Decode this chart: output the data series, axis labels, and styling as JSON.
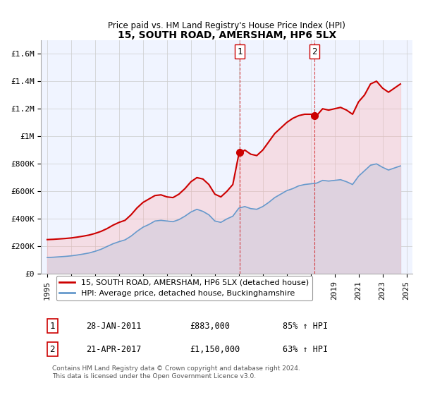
{
  "title": "15, SOUTH ROAD, AMERSHAM, HP6 5LX",
  "subtitle": "Price paid vs. HM Land Registry's House Price Index (HPI)",
  "xlabel": "",
  "ylabel": "",
  "ylim": [
    0,
    1700000
  ],
  "yticks": [
    0,
    200000,
    400000,
    600000,
    800000,
    1000000,
    1200000,
    1400000,
    1600000
  ],
  "ytick_labels": [
    "£0",
    "£200K",
    "£400K",
    "£600K",
    "£800K",
    "£1M",
    "£1.2M",
    "£1.4M",
    "£1.6M"
  ],
  "background_color": "#ffffff",
  "plot_bg_color": "#f0f4ff",
  "grid_color": "#cccccc",
  "red_line_color": "#cc0000",
  "blue_line_color": "#6699cc",
  "blue_fill_color": "#d0e4f7",
  "red_fill_color": "#f5c0c0",
  "marker1_date": 2011.08,
  "marker1_value": 883000,
  "marker1_label": "1",
  "marker2_date": 2017.31,
  "marker2_value": 1150000,
  "marker2_label": "2",
  "transaction1": {
    "date": "28-JAN-2011",
    "price": "£883,000",
    "hpi": "85% ↑ HPI"
  },
  "transaction2": {
    "date": "21-APR-2017",
    "price": "£1,150,000",
    "hpi": "63% ↑ HPI"
  },
  "legend_red": "15, SOUTH ROAD, AMERSHAM, HP6 5LX (detached house)",
  "legend_blue": "HPI: Average price, detached house, Buckinghamshire",
  "footnote": "Contains HM Land Registry data © Crown copyright and database right 2024.\nThis data is licensed under the Open Government Licence v3.0.",
  "red_line_data": {
    "x": [
      1995.0,
      1995.5,
      1996.0,
      1996.5,
      1997.0,
      1997.5,
      1998.0,
      1998.5,
      1999.0,
      1999.5,
      2000.0,
      2000.5,
      2001.0,
      2001.5,
      2002.0,
      2002.5,
      2003.0,
      2003.5,
      2004.0,
      2004.5,
      2005.0,
      2005.5,
      2006.0,
      2006.5,
      2007.0,
      2007.5,
      2008.0,
      2008.5,
      2009.0,
      2009.5,
      2010.0,
      2010.5,
      2011.0,
      2011.5,
      2012.0,
      2012.5,
      2013.0,
      2013.5,
      2014.0,
      2014.5,
      2015.0,
      2015.5,
      2016.0,
      2016.5,
      2017.0,
      2017.5,
      2018.0,
      2018.5,
      2019.0,
      2019.5,
      2020.0,
      2020.5,
      2021.0,
      2021.5,
      2022.0,
      2022.5,
      2023.0,
      2023.5,
      2024.0,
      2024.5
    ],
    "y": [
      250000,
      252000,
      255000,
      258000,
      262000,
      268000,
      275000,
      283000,
      295000,
      310000,
      330000,
      355000,
      375000,
      390000,
      430000,
      480000,
      520000,
      545000,
      570000,
      575000,
      560000,
      555000,
      580000,
      620000,
      670000,
      700000,
      690000,
      650000,
      580000,
      560000,
      600000,
      650000,
      870000,
      900000,
      870000,
      860000,
      900000,
      960000,
      1020000,
      1060000,
      1100000,
      1130000,
      1150000,
      1160000,
      1160000,
      1150000,
      1200000,
      1190000,
      1200000,
      1210000,
      1190000,
      1160000,
      1250000,
      1300000,
      1380000,
      1400000,
      1350000,
      1320000,
      1350000,
      1380000
    ]
  },
  "blue_line_data": {
    "x": [
      1995.0,
      1995.5,
      1996.0,
      1996.5,
      1997.0,
      1997.5,
      1998.0,
      1998.5,
      1999.0,
      1999.5,
      2000.0,
      2000.5,
      2001.0,
      2001.5,
      2002.0,
      2002.5,
      2003.0,
      2003.5,
      2004.0,
      2004.5,
      2005.0,
      2005.5,
      2006.0,
      2006.5,
      2007.0,
      2007.5,
      2008.0,
      2008.5,
      2009.0,
      2009.5,
      2010.0,
      2010.5,
      2011.0,
      2011.5,
      2012.0,
      2012.5,
      2013.0,
      2013.5,
      2014.0,
      2014.5,
      2015.0,
      2015.5,
      2016.0,
      2016.5,
      2017.0,
      2017.5,
      2018.0,
      2018.5,
      2019.0,
      2019.5,
      2020.0,
      2020.5,
      2021.0,
      2021.5,
      2022.0,
      2022.5,
      2023.0,
      2023.5,
      2024.0,
      2024.5
    ],
    "y": [
      120000,
      122000,
      125000,
      128000,
      132000,
      138000,
      145000,
      153000,
      165000,
      180000,
      200000,
      220000,
      235000,
      248000,
      275000,
      310000,
      340000,
      360000,
      385000,
      390000,
      385000,
      380000,
      395000,
      420000,
      450000,
      470000,
      455000,
      430000,
      385000,
      375000,
      400000,
      420000,
      478000,
      490000,
      475000,
      470000,
      490000,
      520000,
      555000,
      580000,
      605000,
      620000,
      640000,
      650000,
      655000,
      660000,
      680000,
      675000,
      680000,
      685000,
      670000,
      650000,
      710000,
      750000,
      790000,
      800000,
      775000,
      755000,
      770000,
      785000
    ]
  },
  "xtick_years": [
    1995,
    1997,
    1999,
    2001,
    2003,
    2005,
    2007,
    2009,
    2011,
    2013,
    2015,
    2017,
    2019,
    2021,
    2023,
    2025
  ],
  "xlim": [
    1994.5,
    2025.5
  ]
}
